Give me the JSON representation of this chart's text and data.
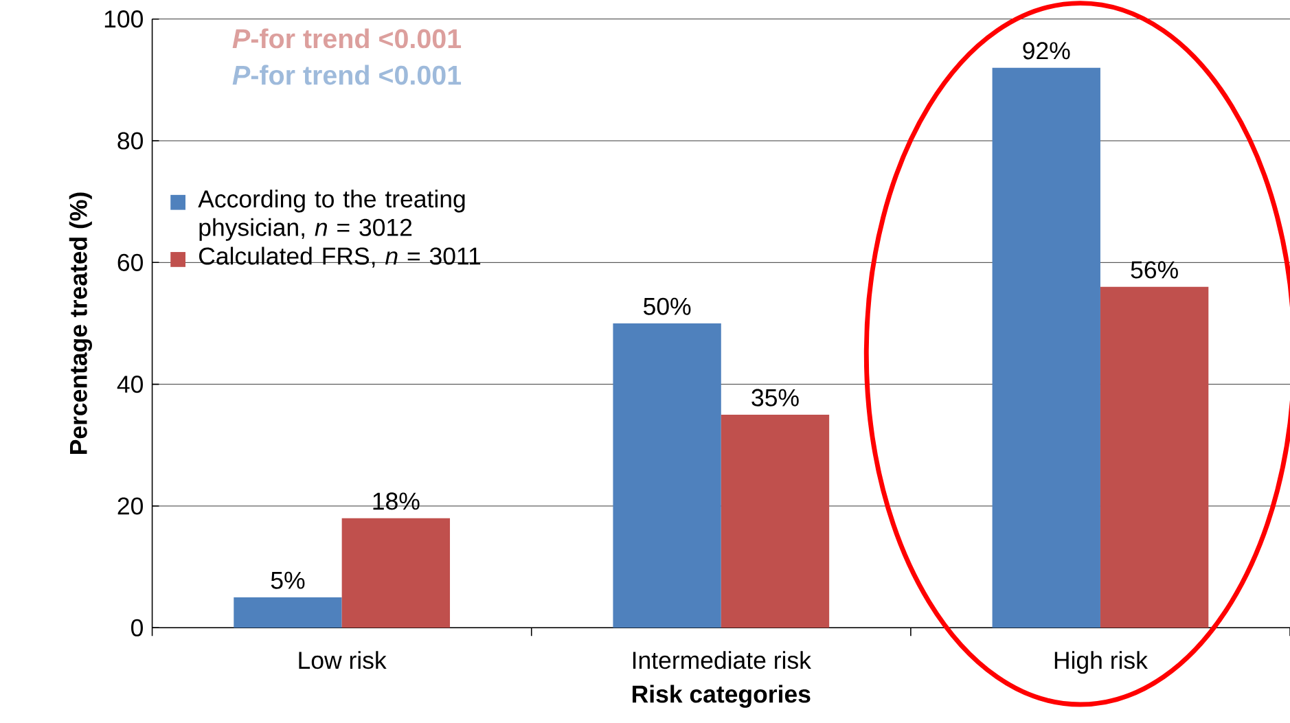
{
  "chart_data": {
    "type": "bar",
    "xlabel": "Risk categories",
    "ylabel": "Percentage treated (%)",
    "categories": [
      "Low risk",
      "Intermediate risk",
      "High risk"
    ],
    "series": [
      {
        "name": "According to the treating physician, *n* = 3012",
        "color": "#4f81bd",
        "values": [
          5,
          50,
          92
        ],
        "value_labels": [
          "5%",
          "50%",
          "92%"
        ]
      },
      {
        "name": "Calculated FRS, *n* = 3011",
        "color": "#c0504d",
        "values": [
          18,
          35,
          56
        ],
        "value_labels": [
          "18%",
          "35%",
          "56%"
        ]
      }
    ],
    "annotations": [
      "*P*-for trend <0.001",
      "*P*-for trend <0.001"
    ],
    "ylim": [
      0,
      100
    ],
    "yticks": [
      0,
      20,
      40,
      60,
      80,
      100
    ],
    "grid": "y",
    "legend": "left"
  }
}
